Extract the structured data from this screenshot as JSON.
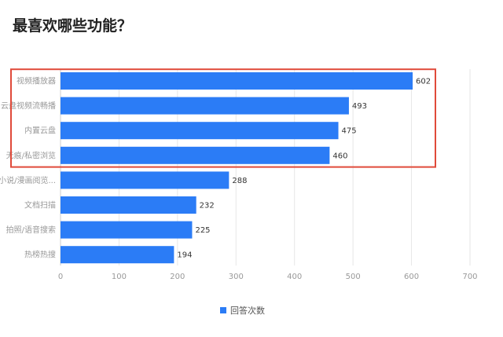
{
  "title": "最喜欢哪些功能？",
  "chart_data": {
    "type": "bar",
    "orientation": "horizontal",
    "title": "最喜欢哪些功能？",
    "categories": [
      "视频播放器",
      "云盘视频流畅播",
      "内置云盘",
      "无痕/私密浏览",
      "小说/漫画阅览...",
      "文档扫描",
      "拍照/语音搜索",
      "热榜热搜"
    ],
    "series": [
      {
        "name": "回答次数",
        "values": [
          602,
          493,
          475,
          460,
          288,
          232,
          225,
          194
        ]
      }
    ],
    "xlim": [
      0,
      700
    ],
    "xticks": [
      0,
      100,
      200,
      300,
      400,
      500,
      600,
      700
    ],
    "grid": true,
    "legend_position": "bottom",
    "highlight": {
      "categories": [
        "视频播放器",
        "云盘视频流畅播",
        "内置云盘",
        "无痕/私密浏览"
      ],
      "color": "#e04a3a"
    },
    "bar_color": "#2b7cf6"
  }
}
